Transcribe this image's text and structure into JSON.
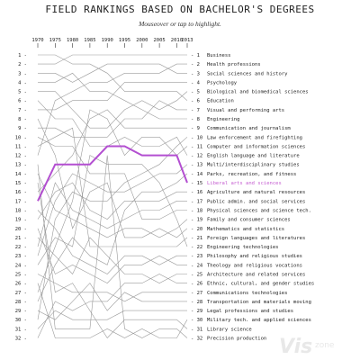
{
  "header": {
    "title": "FIELD RANKINGS BASED ON BACHELOR'S DEGREES",
    "subtitle": "Mouseover or tap to highlight."
  },
  "watermark": {
    "part1": "Vis",
    "part2": "zone"
  },
  "colors": {
    "line": "#9a9a9a",
    "highlight": "#b34fd1",
    "highlight_text": "#c45bd0"
  },
  "chart_data": {
    "type": "line",
    "title": "FIELD RANKINGS BASED ON BACHELOR'S DEGREES",
    "x": [
      1970,
      1975,
      1980,
      1985,
      1990,
      1995,
      2000,
      2005,
      2010,
      2013
    ],
    "x_tick_labels": [
      "1970",
      "1975",
      "1980",
      "1985",
      "1990",
      "1995",
      "2000",
      "2005",
      "2010",
      "2013"
    ],
    "ranks": [
      1,
      2,
      3,
      4,
      5,
      6,
      7,
      8,
      9,
      10,
      11,
      12,
      13,
      14,
      15,
      16,
      17,
      18,
      19,
      20,
      21,
      22,
      23,
      24,
      25,
      26,
      27,
      28,
      29,
      30,
      31,
      32
    ],
    "ylim": [
      32,
      1
    ],
    "highlighted": "Liberal arts and sciences",
    "series": [
      {
        "name": "Business",
        "values": [
          2,
          2,
          1,
          1,
          1,
          1,
          1,
          1,
          1,
          1
        ]
      },
      {
        "name": "Health professions",
        "values": [
          12,
          6,
          5,
          4,
          4,
          3,
          3,
          3,
          2,
          2
        ]
      },
      {
        "name": "Social sciences and history",
        "values": [
          3,
          3,
          4,
          3,
          2,
          2,
          2,
          2,
          3,
          3
        ]
      },
      {
        "name": "Psychology",
        "values": [
          7,
          7,
          6,
          6,
          6,
          4,
          4,
          4,
          4,
          4
        ]
      },
      {
        "name": "Biological and biomedical sciences",
        "values": [
          5,
          5,
          7,
          9,
          9,
          7,
          6,
          7,
          6,
          5
        ]
      },
      {
        "name": "Education",
        "values": [
          1,
          1,
          2,
          2,
          3,
          5,
          5,
          5,
          5,
          6
        ]
      },
      {
        "name": "Visual and performing arts",
        "values": [
          9,
          9,
          10,
          10,
          10,
          8,
          8,
          6,
          7,
          7
        ]
      },
      {
        "name": "Engineering",
        "values": [
          4,
          4,
          3,
          5,
          5,
          6,
          7,
          8,
          8,
          8
        ]
      },
      {
        "name": "Communication and journalism",
        "values": [
          16,
          14,
          12,
          8,
          7,
          9,
          9,
          9,
          9,
          9
        ]
      },
      {
        "name": "Law enforcement and firefighting",
        "values": [
          30,
          19,
          16,
          17,
          17,
          15,
          14,
          13,
          11,
          10
        ]
      },
      {
        "name": "Computer and information sciences",
        "values": [
          27,
          22,
          17,
          7,
          8,
          12,
          10,
          10,
          12,
          11
        ]
      },
      {
        "name": "English language and literature",
        "values": [
          6,
          8,
          8,
          11,
          11,
          10,
          11,
          11,
          10,
          12
        ]
      },
      {
        "name": "Multi/interdisciplinary studies",
        "values": [
          23,
          17,
          14,
          15,
          16,
          16,
          15,
          14,
          14,
          13
        ]
      },
      {
        "name": "Parks, recreation, and fitness",
        "values": [
          28,
          24,
          21,
          23,
          24,
          18,
          16,
          16,
          15,
          14
        ]
      },
      {
        "name": "Liberal arts and sciences",
        "values": [
          17,
          13,
          13,
          13,
          11,
          11,
          12,
          12,
          12,
          15
        ]
      },
      {
        "name": "Agriculture and natural resources",
        "values": [
          19,
          16,
          15,
          18,
          19,
          17,
          17,
          17,
          16,
          16
        ]
      },
      {
        "name": "Public admin. and social services",
        "values": [
          22,
          15,
          18,
          19,
          20,
          19,
          18,
          18,
          17,
          17
        ]
      },
      {
        "name": "Physical sciences and science tech.",
        "values": [
          10,
          11,
          11,
          14,
          14,
          14,
          19,
          19,
          18,
          18
        ]
      },
      {
        "name": "Family and consumer sciences",
        "values": [
          14,
          18,
          19,
          20,
          21,
          20,
          20,
          21,
          20,
          19
        ]
      },
      {
        "name": "Mathematics and statistics",
        "values": [
          8,
          12,
          20,
          16,
          15,
          21,
          21,
          20,
          21,
          20
        ]
      },
      {
        "name": "Foreign languages and literatures",
        "values": [
          11,
          10,
          9,
          22,
          22,
          22,
          22,
          22,
          22,
          21
        ]
      },
      {
        "name": "Engineering technologies",
        "values": [
          24,
          21,
          22,
          12,
          13,
          13,
          13,
          15,
          19,
          22
        ]
      },
      {
        "name": "Philosophy and religious studies",
        "values": [
          18,
          20,
          23,
          24,
          25,
          23,
          23,
          24,
          23,
          23
        ]
      },
      {
        "name": "Theology and religious vocations",
        "values": [
          20,
          25,
          24,
          25,
          26,
          24,
          24,
          23,
          24,
          24
        ]
      },
      {
        "name": "Architecture and related services",
        "values": [
          21,
          23,
          25,
          21,
          23,
          25,
          25,
          26,
          25,
          25
        ]
      },
      {
        "name": "Ethnic, cultural, and gender studies",
        "values": [
          32,
          28,
          29,
          28,
          28,
          26,
          26,
          25,
          26,
          26
        ]
      },
      {
        "name": "Communications technologies",
        "values": [
          25,
          26,
          27,
          27,
          27,
          28,
          27,
          27,
          27,
          27
        ]
      },
      {
        "name": "Transportation and materials moving",
        "values": [
          29,
          30,
          28,
          26,
          29,
          27,
          28,
          28,
          28,
          28
        ]
      },
      {
        "name": "Legal professions and studies",
        "values": [
          31,
          29,
          30,
          30,
          30,
          29,
          29,
          29,
          29,
          29
        ]
      },
      {
        "name": "Military tech. and applied sciences",
        "values": [
          26,
          32,
          32,
          32,
          31,
          32,
          31,
          32,
          32,
          30
        ]
      },
      {
        "name": "Library science",
        "values": [
          15,
          27,
          26,
          29,
          32,
          30,
          30,
          30,
          30,
          31
        ]
      },
      {
        "name": "Precision production",
        "values": [
          13,
          31,
          31,
          31,
          12,
          31,
          32,
          31,
          31,
          32
        ]
      }
    ]
  }
}
